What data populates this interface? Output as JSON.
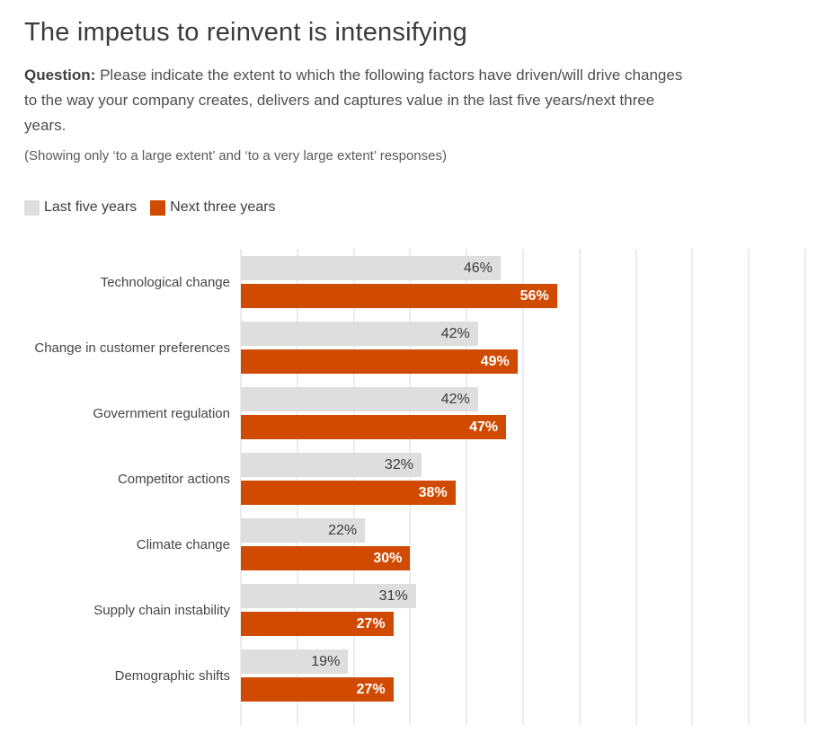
{
  "header": {
    "title": "The impetus to reinvent is intensifying",
    "question_label": "Question:",
    "question_text": "Please indicate the extent to which the following factors have driven/will drive changes to the way your company creates, delivers and captures value in the last five years/next three years.",
    "note": "(Showing only ‘to a large extent’ and ‘to a very large extent’ responses)"
  },
  "colors": {
    "last_five_years": "#dedede",
    "next_three_years": "#d04a02",
    "gridline": "#ececec",
    "value_label_dark": "#3c3c3c",
    "value_label_light": "#ffffff"
  },
  "chart_data": {
    "type": "bar",
    "orientation": "horizontal",
    "title": "The impetus to reinvent is intensifying",
    "categories": [
      "Technological change",
      "Change in customer preferences",
      "Government regulation",
      "Competitor actions",
      "Climate change",
      "Supply chain instability",
      "Demographic shifts"
    ],
    "series": [
      {
        "name": "Last five years",
        "color": "#dedede",
        "values": [
          46,
          42,
          42,
          32,
          22,
          31,
          19
        ]
      },
      {
        "name": "Next three years",
        "color": "#d04a02",
        "values": [
          56,
          49,
          47,
          38,
          30,
          27,
          27
        ]
      }
    ],
    "value_suffix": "%",
    "xlim": [
      0,
      100
    ],
    "gridlines_every": 10,
    "grid": true,
    "legend_position": "top",
    "data_labels": "inside-end"
  }
}
